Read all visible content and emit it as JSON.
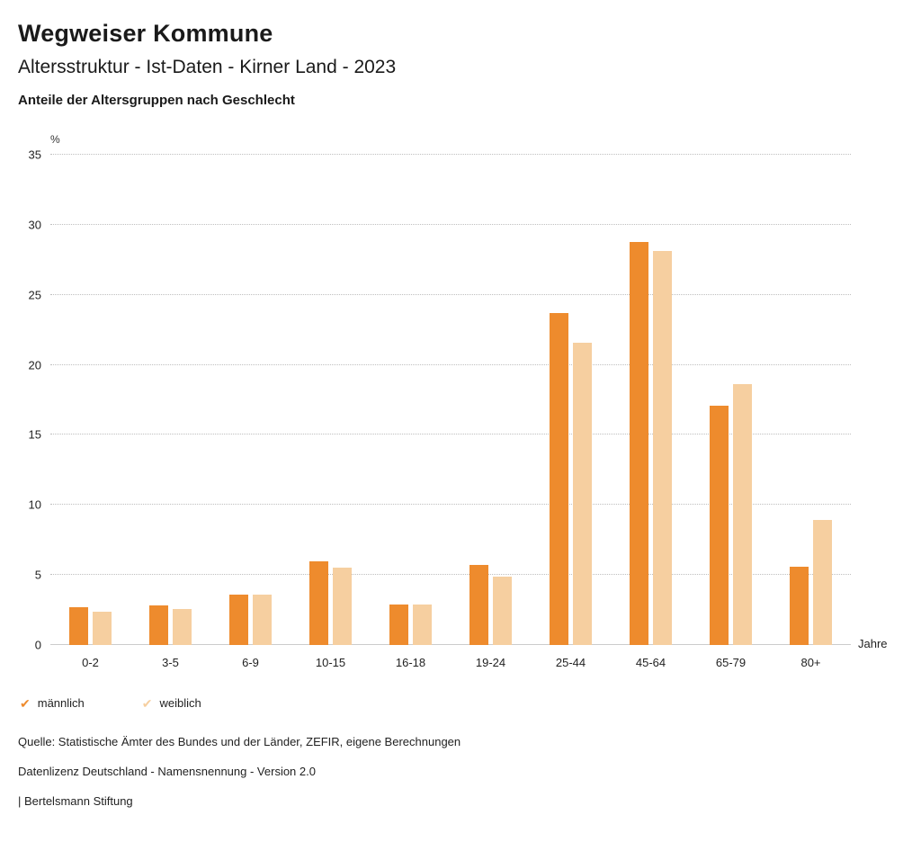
{
  "header": {
    "title": "Wegweiser Kommune",
    "subtitle": "Altersstruktur - Ist-Daten - Kirner Land - 2023",
    "description": "Anteile der Altersgruppen nach Geschlecht"
  },
  "chart_data": {
    "type": "bar",
    "title": "Anteile der Altersgruppen nach Geschlecht",
    "y_unit": "%",
    "x_unit": "Jahre",
    "ylim": [
      0,
      35
    ],
    "ytick_step": 5,
    "grid": true,
    "legend_position": "bottom",
    "categories": [
      "0-2",
      "3-5",
      "6-9",
      "10-15",
      "16-18",
      "19-24",
      "25-44",
      "45-64",
      "65-79",
      "80+"
    ],
    "series": [
      {
        "name": "männlich",
        "color": "#EE8B2D",
        "values": [
          2.7,
          2.8,
          3.6,
          6.0,
          2.9,
          5.7,
          23.7,
          28.8,
          17.1,
          5.6
        ]
      },
      {
        "name": "weiblich",
        "color": "#F6CFA0",
        "values": [
          2.4,
          2.6,
          3.6,
          5.5,
          2.9,
          4.9,
          21.6,
          28.1,
          18.6,
          8.9
        ]
      }
    ]
  },
  "legend": {
    "check_icon": "✔"
  },
  "footer": {
    "source": "Quelle: Statistische Ämter des Bundes und der Länder, ZEFIR, eigene Berechnungen",
    "license": "Datenlizenz Deutschland - Namensnennung - Version 2.0",
    "attribution": "| Bertelsmann Stiftung"
  }
}
